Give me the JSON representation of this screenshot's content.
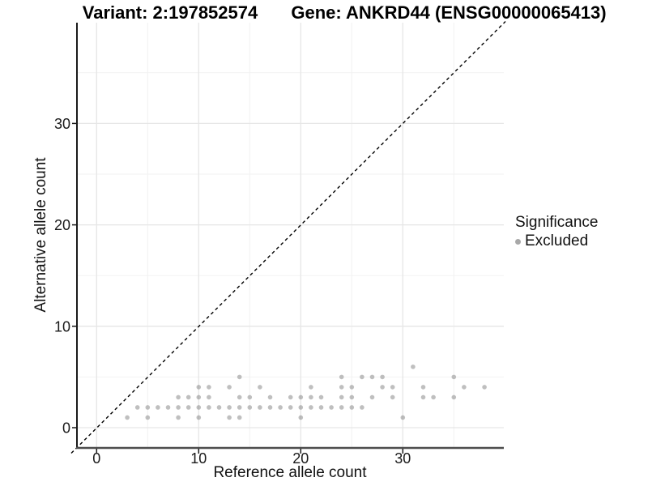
{
  "titles": {
    "variant": "Variant: 2:197852574",
    "gene": "Gene: ANKRD44 (ENSG00000065413)"
  },
  "chart_data": {
    "type": "scatter",
    "xlabel": "Reference allele count",
    "ylabel": "Alternative allele count",
    "xlim": [
      -2,
      41
    ],
    "ylim": [
      -2,
      40
    ],
    "x_ticks": [
      0,
      10,
      20,
      30
    ],
    "y_ticks": [
      0,
      10,
      20,
      30
    ],
    "x_minor_ticks": [
      5,
      15,
      25,
      35
    ],
    "y_minor_ticks": [
      5,
      15,
      25,
      35
    ],
    "grid": true,
    "legend_position": "right",
    "reference_line": {
      "type": "identity",
      "equation": "y = x",
      "style": "dashed",
      "color": "#000000"
    },
    "legend": {
      "title": "Significance",
      "items": [
        {
          "label": "Excluded",
          "color": "#a8a8a8"
        }
      ]
    },
    "series": [
      {
        "name": "Excluded",
        "color": "#808080",
        "points": [
          [
            3,
            1
          ],
          [
            5,
            1
          ],
          [
            8,
            1
          ],
          [
            10,
            1
          ],
          [
            13,
            1
          ],
          [
            14,
            1
          ],
          [
            20,
            1
          ],
          [
            30,
            1
          ],
          [
            4,
            2
          ],
          [
            5,
            2
          ],
          [
            6,
            2
          ],
          [
            7,
            2
          ],
          [
            8,
            2
          ],
          [
            9,
            2
          ],
          [
            10,
            2
          ],
          [
            11,
            2
          ],
          [
            12,
            2
          ],
          [
            13,
            2
          ],
          [
            14,
            2
          ],
          [
            15,
            2
          ],
          [
            16,
            2
          ],
          [
            17,
            2
          ],
          [
            18,
            2
          ],
          [
            19,
            2
          ],
          [
            20,
            2
          ],
          [
            21,
            2
          ],
          [
            22,
            2
          ],
          [
            23,
            2
          ],
          [
            24,
            2
          ],
          [
            25,
            2
          ],
          [
            26,
            2
          ],
          [
            8,
            3
          ],
          [
            9,
            3
          ],
          [
            10,
            3
          ],
          [
            11,
            3
          ],
          [
            14,
            3
          ],
          [
            15,
            3
          ],
          [
            17,
            3
          ],
          [
            19,
            3
          ],
          [
            20,
            3
          ],
          [
            21,
            3
          ],
          [
            22,
            3
          ],
          [
            24,
            3
          ],
          [
            25,
            3
          ],
          [
            27,
            3
          ],
          [
            29,
            3
          ],
          [
            32,
            3
          ],
          [
            33,
            3
          ],
          [
            35,
            3
          ],
          [
            10,
            4
          ],
          [
            11,
            4
          ],
          [
            13,
            4
          ],
          [
            16,
            4
          ],
          [
            21,
            4
          ],
          [
            24,
            4
          ],
          [
            25,
            4
          ],
          [
            28,
            4
          ],
          [
            29,
            4
          ],
          [
            32,
            4
          ],
          [
            36,
            4
          ],
          [
            38,
            4
          ],
          [
            14,
            5
          ],
          [
            24,
            5
          ],
          [
            26,
            5
          ],
          [
            27,
            5
          ],
          [
            28,
            5
          ],
          [
            35,
            5
          ],
          [
            31,
            6
          ]
        ]
      }
    ]
  },
  "colors": {
    "background": "#ffffff",
    "major_grid": "#e6e6e6",
    "minor_grid": "#f2f2f2",
    "axis_line": "#1a1a1a",
    "bottom_axis_line": "#4d4d4d",
    "tick_label": "#1a1a1a",
    "point": "#808080"
  }
}
